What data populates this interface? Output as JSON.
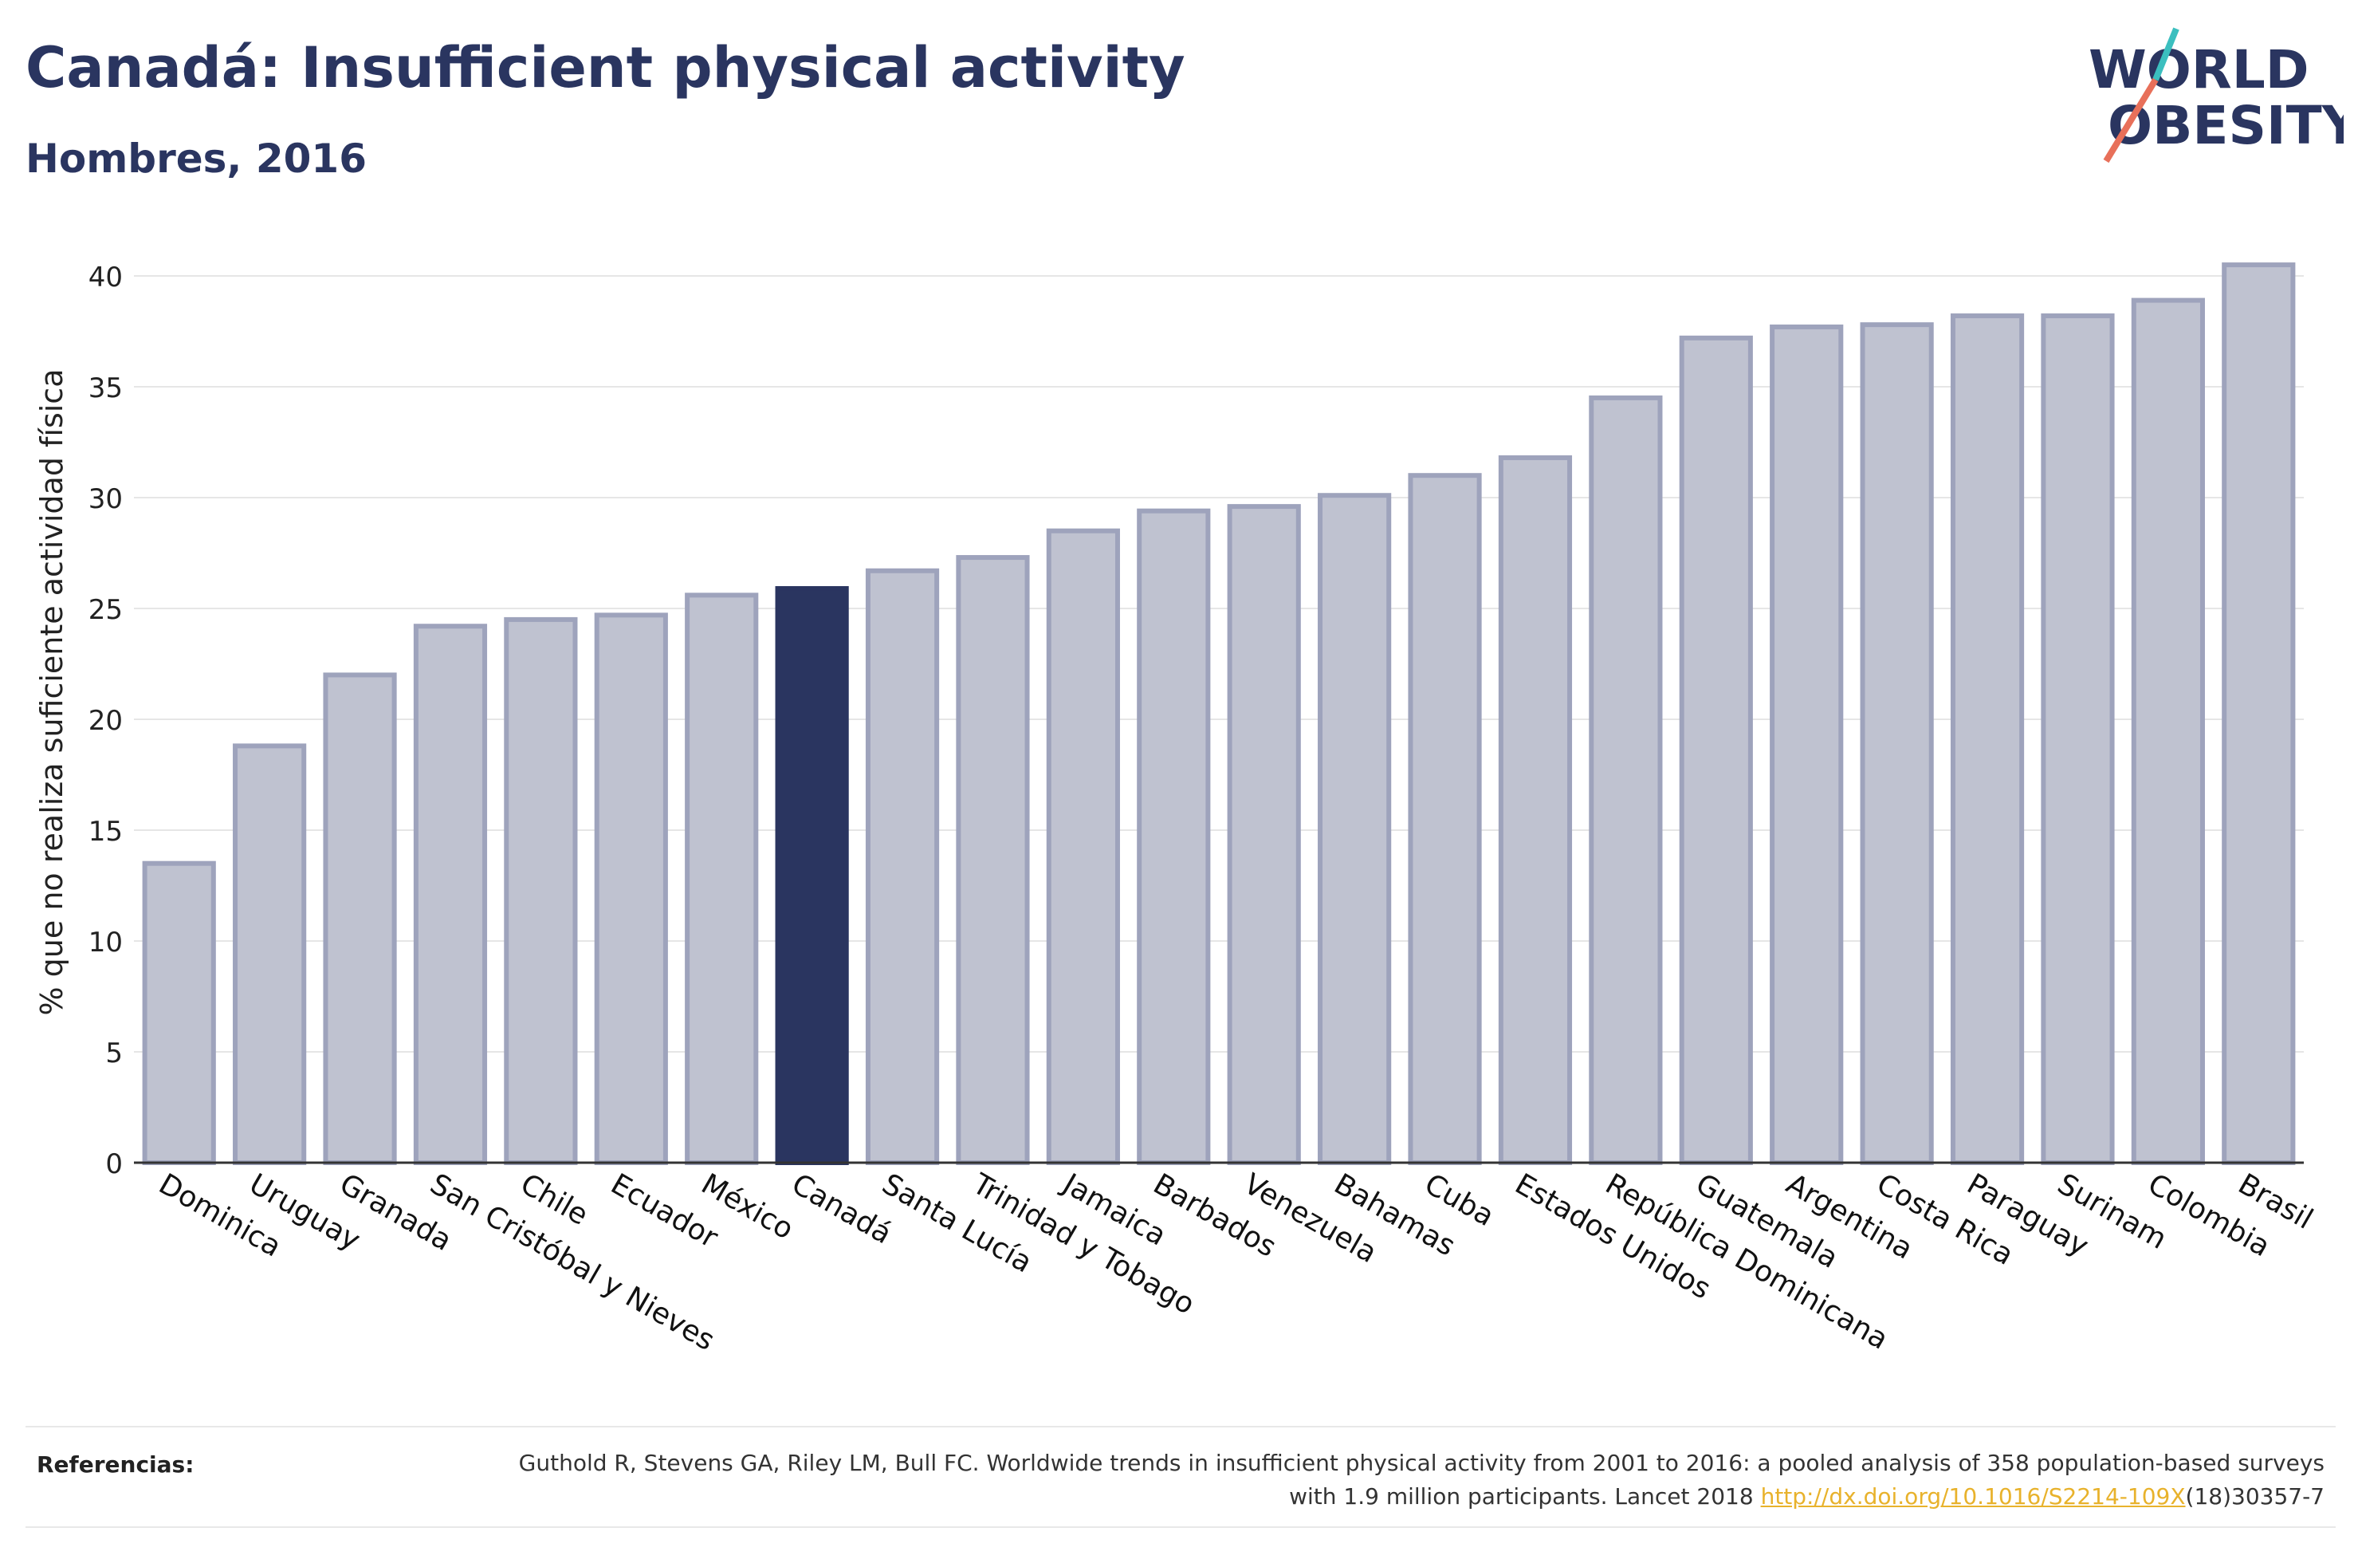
{
  "header": {
    "title": "Canadá: Insufficient physical activity",
    "subtitle": "Hombres, 2016"
  },
  "logo": {
    "line1": "WORLD",
    "line2": "OBESITY"
  },
  "chart_data": {
    "type": "bar",
    "ylabel": "% que no realiza suficiente actividad física",
    "ylim": [
      0,
      40
    ],
    "yticks": [
      0,
      5,
      10,
      15,
      20,
      25,
      30,
      35,
      40
    ],
    "grid": true,
    "highlight": "Canadá",
    "categories": [
      "Dominica",
      "Uruguay",
      "Granada",
      "San Cristóbal y Nieves",
      "Chile",
      "Ecuador",
      "México",
      "Canadá",
      "Santa Lucía",
      "Trinidad y Tobago",
      "Jamaica",
      "Barbados",
      "Venezuela",
      "Bahamas",
      "Cuba",
      "Estados Unidos",
      "República Dominicana",
      "Guatemala",
      "Argentina",
      "Costa Rica",
      "Paraguay",
      "Surinam",
      "Colombia",
      "Brasil"
    ],
    "values": [
      13.5,
      18.8,
      22.0,
      24.2,
      24.5,
      24.7,
      25.6,
      25.9,
      26.7,
      27.3,
      28.5,
      29.4,
      29.6,
      30.1,
      31.0,
      31.8,
      34.5,
      37.2,
      37.7,
      37.8,
      38.2,
      38.2,
      38.9,
      40.5
    ]
  },
  "references": {
    "label": "Referencias:",
    "text_before": "Guthold R, Stevens GA, Riley LM, Bull FC. Worldwide trends in insufficient physical activity from 2001 to 2016: a pooled analysis of 358 population-based surveys with 1.9 million participants. Lancet 2018 ",
    "link": "http://dx.doi.org/10.1016/S2214-109X",
    "text_after": "(18)30357-7"
  },
  "colors": {
    "title": "#2a3560",
    "bar": "#bfc2d0",
    "bar_stroke": "#9ea3bc",
    "highlight": "#2a3560",
    "logo_teal": "#3bbfbf",
    "logo_coral": "#e8705a"
  }
}
